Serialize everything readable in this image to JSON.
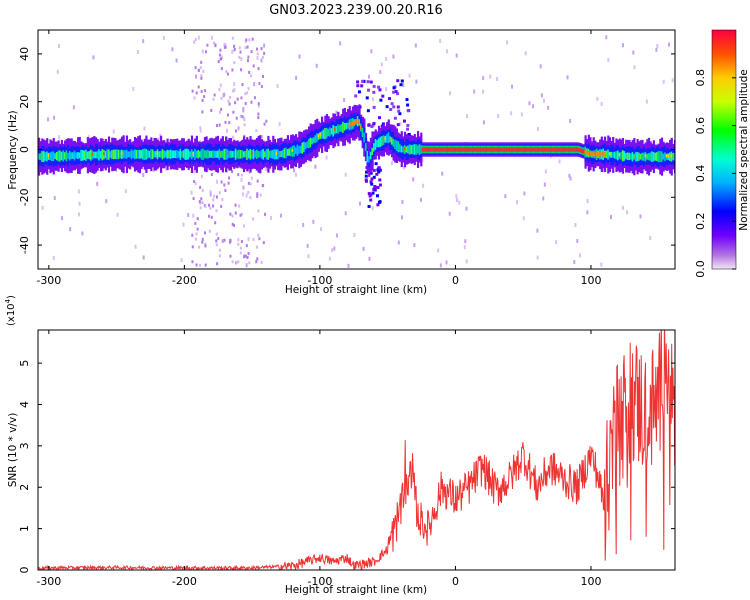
{
  "title": "GN03.2023.239.00.20.R16",
  "spectrogram": {
    "ylabel": "Frequency (Hz)",
    "xlabel": "Height of straight line (km)",
    "xticks": [
      -300,
      -200,
      -100,
      0,
      100
    ],
    "yticks": [
      -40,
      -20,
      0,
      20,
      40
    ],
    "xlim": [
      -308,
      162
    ],
    "ylim": [
      -50,
      50
    ]
  },
  "colorbar": {
    "label": "Normalized spectral amplitude",
    "ticks": [
      "0.0",
      "0.2",
      "0.4",
      "0.6",
      "0.8"
    ],
    "tick_values": [
      0.0,
      0.2,
      0.4,
      0.6,
      0.8
    ]
  },
  "snr": {
    "ylabel": "SNR (10 * v/v)",
    "multiplier_base": "(x10",
    "multiplier_exp": "4",
    "multiplier_close": ")",
    "xlabel": "Height of straight line (km)",
    "xticks": [
      -300,
      -200,
      -100,
      0,
      100
    ],
    "yticks": [
      0,
      1,
      2,
      3,
      4,
      5
    ],
    "xlim": [
      -308,
      162
    ],
    "ylim": [
      0,
      5.8
    ],
    "line_color": "#ee3333"
  },
  "chart_data": [
    {
      "type": "heatmap",
      "title": "GN03.2023.239.00.20.R16",
      "xlabel": "Height of straight line (km)",
      "ylabel": "Frequency (Hz)",
      "xlim": [
        -308,
        162
      ],
      "ylim": [
        -50,
        50
      ],
      "colorbar_label": "Normalized spectral amplitude",
      "colorbar_range": [
        0,
        1
      ],
      "ridge": {
        "x": [
          -308,
          -250,
          -200,
          -150,
          -130,
          -115,
          -100,
          -90,
          -80,
          -72,
          -68,
          -65,
          -60,
          -50,
          -45,
          -40,
          -30,
          0,
          50,
          90,
          100,
          110,
          130,
          162
        ],
        "frequency_hz": [
          -3,
          -2,
          -2,
          -2,
          -2,
          0,
          6,
          8,
          10,
          12,
          5,
          -5,
          2,
          5,
          2,
          0,
          0,
          0,
          0,
          0,
          -2,
          -2,
          -3,
          -3
        ]
      }
    },
    {
      "type": "line",
      "xlabel": "Height of straight line (km)",
      "ylabel": "SNR (10 * v/v)",
      "y_multiplier": "x10^4",
      "xlim": [
        -308,
        162
      ],
      "ylim": [
        0,
        5.8
      ],
      "x": [
        -308,
        -250,
        -200,
        -150,
        -120,
        -100,
        -90,
        -80,
        -75,
        -60,
        -50,
        -45,
        -40,
        -35,
        -32,
        -28,
        -20,
        -10,
        0,
        10,
        20,
        30,
        40,
        50,
        60,
        70,
        80,
        90,
        100,
        105,
        110,
        115,
        120,
        130,
        140,
        150,
        155,
        160,
        162
      ],
      "y": [
        0.05,
        0.06,
        0.05,
        0.05,
        0.1,
        0.3,
        0.2,
        0.3,
        0.1,
        0.2,
        0.5,
        1.0,
        1.5,
        2.0,
        2.5,
        1.3,
        1.0,
        2.0,
        1.7,
        2.0,
        2.5,
        1.9,
        2.2,
        2.8,
        2.0,
        2.5,
        2.2,
        2.0,
        2.8,
        2.3,
        1.5,
        3.0,
        3.5,
        4.2,
        3.8,
        4.0,
        5.8,
        4.0,
        3.0
      ]
    }
  ]
}
